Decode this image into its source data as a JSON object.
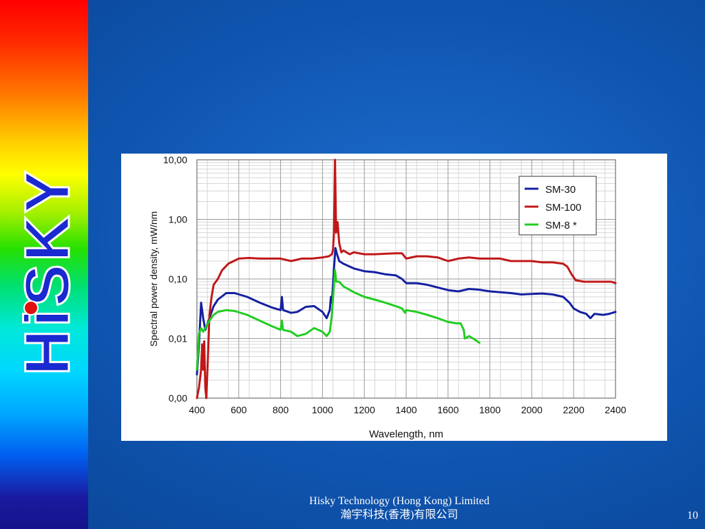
{
  "logo": {
    "text": "HiSKY"
  },
  "footer": {
    "company_en": "Hisky Technology (Hong Kong) Limited",
    "company_zh": "瀚宇科技(香港)有限公司"
  },
  "page_number": "10",
  "colors": {
    "sm30": "#1420a0",
    "sm100": "#c01818",
    "sm8": "#22cc22",
    "logo_fill": "#1a2ad0",
    "logo_dot": "#e01010"
  },
  "chart_data": {
    "type": "line",
    "xlabel": "Wavelength, nm",
    "ylabel": "Spectral power density, mW/nm",
    "xlim": [
      400,
      2400
    ],
    "ylim": [
      0.001,
      10
    ],
    "y_scale": "log",
    "x_ticks": [
      "400",
      "600",
      "800",
      "1000",
      "1200",
      "1400",
      "1600",
      "1800",
      "2000",
      "2200",
      "2400"
    ],
    "y_ticks": [
      {
        "value": 0.001,
        "label": "0,00"
      },
      {
        "value": 0.01,
        "label": "0,01"
      },
      {
        "value": 0.1,
        "label": "0,10"
      },
      {
        "value": 1,
        "label": "1,00"
      },
      {
        "value": 10,
        "label": "10,00"
      }
    ],
    "grid": true,
    "legend": "top-right",
    "series": [
      {
        "name": "SM-30",
        "color": "#1420a0",
        "points": [
          [
            400,
            0.0025
          ],
          [
            410,
            0.008
          ],
          [
            420,
            0.04
          ],
          [
            430,
            0.022
          ],
          [
            440,
            0.014
          ],
          [
            460,
            0.022
          ],
          [
            480,
            0.035
          ],
          [
            500,
            0.045
          ],
          [
            540,
            0.058
          ],
          [
            580,
            0.058
          ],
          [
            640,
            0.05
          ],
          [
            700,
            0.04
          ],
          [
            760,
            0.033
          ],
          [
            800,
            0.03
          ],
          [
            806,
            0.05
          ],
          [
            812,
            0.03
          ],
          [
            850,
            0.027
          ],
          [
            880,
            0.028
          ],
          [
            920,
            0.034
          ],
          [
            960,
            0.035
          ],
          [
            1000,
            0.028
          ],
          [
            1020,
            0.022
          ],
          [
            1035,
            0.03
          ],
          [
            1040,
            0.05
          ],
          [
            1045,
            0.04
          ],
          [
            1055,
            0.15
          ],
          [
            1062,
            0.33
          ],
          [
            1068,
            0.27
          ],
          [
            1080,
            0.2
          ],
          [
            1100,
            0.18
          ],
          [
            1150,
            0.15
          ],
          [
            1200,
            0.135
          ],
          [
            1250,
            0.13
          ],
          [
            1300,
            0.12
          ],
          [
            1350,
            0.115
          ],
          [
            1380,
            0.1
          ],
          [
            1400,
            0.085
          ],
          [
            1450,
            0.085
          ],
          [
            1500,
            0.08
          ],
          [
            1550,
            0.072
          ],
          [
            1600,
            0.065
          ],
          [
            1650,
            0.062
          ],
          [
            1700,
            0.068
          ],
          [
            1750,
            0.066
          ],
          [
            1800,
            0.062
          ],
          [
            1850,
            0.06
          ],
          [
            1900,
            0.058
          ],
          [
            1950,
            0.055
          ],
          [
            2000,
            0.056
          ],
          [
            2050,
            0.057
          ],
          [
            2100,
            0.055
          ],
          [
            2150,
            0.05
          ],
          [
            2180,
            0.04
          ],
          [
            2200,
            0.032
          ],
          [
            2230,
            0.028
          ],
          [
            2260,
            0.026
          ],
          [
            2280,
            0.022
          ],
          [
            2300,
            0.026
          ],
          [
            2340,
            0.025
          ],
          [
            2370,
            0.026
          ],
          [
            2400,
            0.028
          ]
        ]
      },
      {
        "name": "SM-100",
        "color": "#c01818",
        "points": [
          [
            400,
            0.001
          ],
          [
            410,
            0.0015
          ],
          [
            420,
            0.003
          ],
          [
            425,
            0.008
          ],
          [
            430,
            0.003
          ],
          [
            435,
            0.009
          ],
          [
            440,
            0.0015
          ],
          [
            445,
            0.001
          ],
          [
            455,
            0.008
          ],
          [
            460,
            0.025
          ],
          [
            470,
            0.05
          ],
          [
            480,
            0.08
          ],
          [
            500,
            0.1
          ],
          [
            520,
            0.14
          ],
          [
            550,
            0.18
          ],
          [
            600,
            0.22
          ],
          [
            650,
            0.225
          ],
          [
            700,
            0.22
          ],
          [
            800,
            0.22
          ],
          [
            850,
            0.2
          ],
          [
            900,
            0.22
          ],
          [
            950,
            0.22
          ],
          [
            1000,
            0.23
          ],
          [
            1030,
            0.24
          ],
          [
            1045,
            0.26
          ],
          [
            1050,
            0.3
          ],
          [
            1055,
            0.6
          ],
          [
            1060,
            10
          ],
          [
            1065,
            0.6
          ],
          [
            1072,
            0.9
          ],
          [
            1080,
            0.4
          ],
          [
            1090,
            0.28
          ],
          [
            1100,
            0.3
          ],
          [
            1130,
            0.26
          ],
          [
            1150,
            0.28
          ],
          [
            1200,
            0.26
          ],
          [
            1250,
            0.26
          ],
          [
            1300,
            0.265
          ],
          [
            1350,
            0.27
          ],
          [
            1380,
            0.27
          ],
          [
            1400,
            0.22
          ],
          [
            1450,
            0.24
          ],
          [
            1500,
            0.24
          ],
          [
            1550,
            0.23
          ],
          [
            1600,
            0.2
          ],
          [
            1650,
            0.22
          ],
          [
            1700,
            0.23
          ],
          [
            1750,
            0.22
          ],
          [
            1800,
            0.22
          ],
          [
            1850,
            0.22
          ],
          [
            1900,
            0.2
          ],
          [
            1950,
            0.2
          ],
          [
            2000,
            0.2
          ],
          [
            2050,
            0.19
          ],
          [
            2100,
            0.19
          ],
          [
            2150,
            0.18
          ],
          [
            2170,
            0.16
          ],
          [
            2190,
            0.12
          ],
          [
            2210,
            0.095
          ],
          [
            2250,
            0.09
          ],
          [
            2300,
            0.09
          ],
          [
            2350,
            0.09
          ],
          [
            2380,
            0.09
          ],
          [
            2400,
            0.085
          ]
        ]
      },
      {
        "name": "SM-8 *",
        "color": "#22cc22",
        "points": [
          [
            400,
            0.003
          ],
          [
            410,
            0.012
          ],
          [
            420,
            0.015
          ],
          [
            430,
            0.013
          ],
          [
            440,
            0.015
          ],
          [
            460,
            0.02
          ],
          [
            480,
            0.025
          ],
          [
            500,
            0.028
          ],
          [
            540,
            0.03
          ],
          [
            580,
            0.029
          ],
          [
            640,
            0.025
          ],
          [
            700,
            0.02
          ],
          [
            760,
            0.016
          ],
          [
            800,
            0.014
          ],
          [
            806,
            0.02
          ],
          [
            812,
            0.014
          ],
          [
            850,
            0.013
          ],
          [
            880,
            0.011
          ],
          [
            920,
            0.012
          ],
          [
            960,
            0.015
          ],
          [
            1000,
            0.013
          ],
          [
            1020,
            0.011
          ],
          [
            1035,
            0.013
          ],
          [
            1045,
            0.025
          ],
          [
            1055,
            0.08
          ],
          [
            1060,
            0.14
          ],
          [
            1066,
            0.09
          ],
          [
            1080,
            0.09
          ],
          [
            1100,
            0.075
          ],
          [
            1150,
            0.06
          ],
          [
            1200,
            0.05
          ],
          [
            1250,
            0.045
          ],
          [
            1300,
            0.04
          ],
          [
            1350,
            0.035
          ],
          [
            1380,
            0.032
          ],
          [
            1395,
            0.027
          ],
          [
            1400,
            0.03
          ],
          [
            1450,
            0.028
          ],
          [
            1500,
            0.025
          ],
          [
            1550,
            0.022
          ],
          [
            1600,
            0.019
          ],
          [
            1640,
            0.018
          ],
          [
            1660,
            0.018
          ],
          [
            1675,
            0.014
          ],
          [
            1680,
            0.01
          ],
          [
            1700,
            0.011
          ],
          [
            1720,
            0.01
          ],
          [
            1750,
            0.0085
          ]
        ]
      }
    ]
  }
}
